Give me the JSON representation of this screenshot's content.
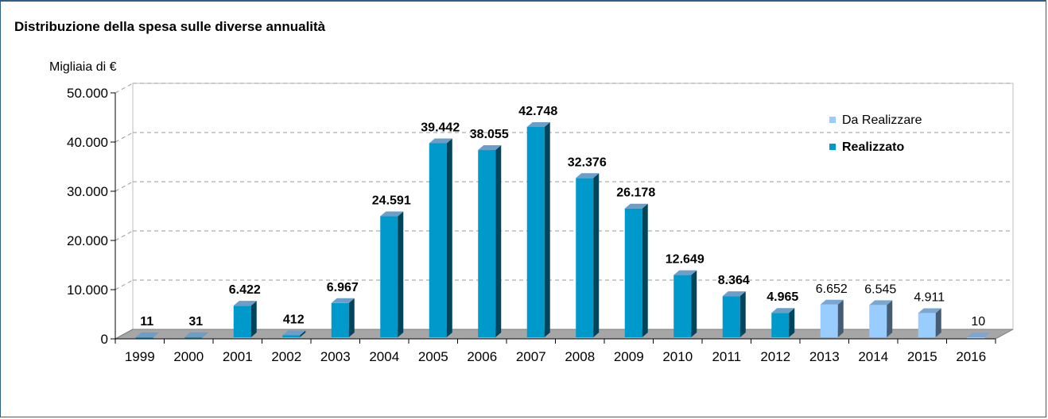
{
  "title": "Distribuzione della spesa sulle diverse annualità",
  "unit_label": "Migliaia di €",
  "chart_data": {
    "type": "bar",
    "title": "Distribuzione della spesa sulle diverse annualità",
    "ylabel": "Migliaia di €",
    "xlabel": "",
    "ylim": [
      0,
      50000
    ],
    "yticks": [
      0,
      10000,
      20000,
      30000,
      40000,
      50000
    ],
    "ytick_labels": [
      "0",
      "10.000",
      "20.000",
      "30.000",
      "40.000",
      "50.000"
    ],
    "categories": [
      "1999",
      "2000",
      "2001",
      "2002",
      "2003",
      "2004",
      "2005",
      "2006",
      "2007",
      "2008",
      "2009",
      "2010",
      "2011",
      "2012",
      "2013",
      "2014",
      "2015",
      "2016"
    ],
    "value_labels": [
      "11",
      "31",
      "6.422",
      "412",
      "6.967",
      "24.591",
      "39.442",
      "38.055",
      "42.748",
      "32.376",
      "26.178",
      "12.649",
      "8.364",
      "4.965",
      "6.652",
      "6.545",
      "4.911",
      "10"
    ],
    "series": [
      {
        "name": "Realizzato",
        "color": "#0099cc",
        "values": [
          11,
          31,
          6422,
          412,
          6967,
          24591,
          39442,
          38055,
          42748,
          32376,
          26178,
          12649,
          8364,
          4965,
          null,
          null,
          null,
          null
        ]
      },
      {
        "name": "Da Realizzare",
        "color": "#99ccff",
        "values": [
          null,
          null,
          null,
          null,
          null,
          null,
          null,
          null,
          null,
          null,
          null,
          null,
          null,
          null,
          6652,
          6545,
          4911,
          10
        ]
      }
    ],
    "legend": {
      "position": "top-right",
      "entries": [
        "Da Realizzare",
        "Realizzato"
      ]
    },
    "grid": "dashed horizontal"
  }
}
